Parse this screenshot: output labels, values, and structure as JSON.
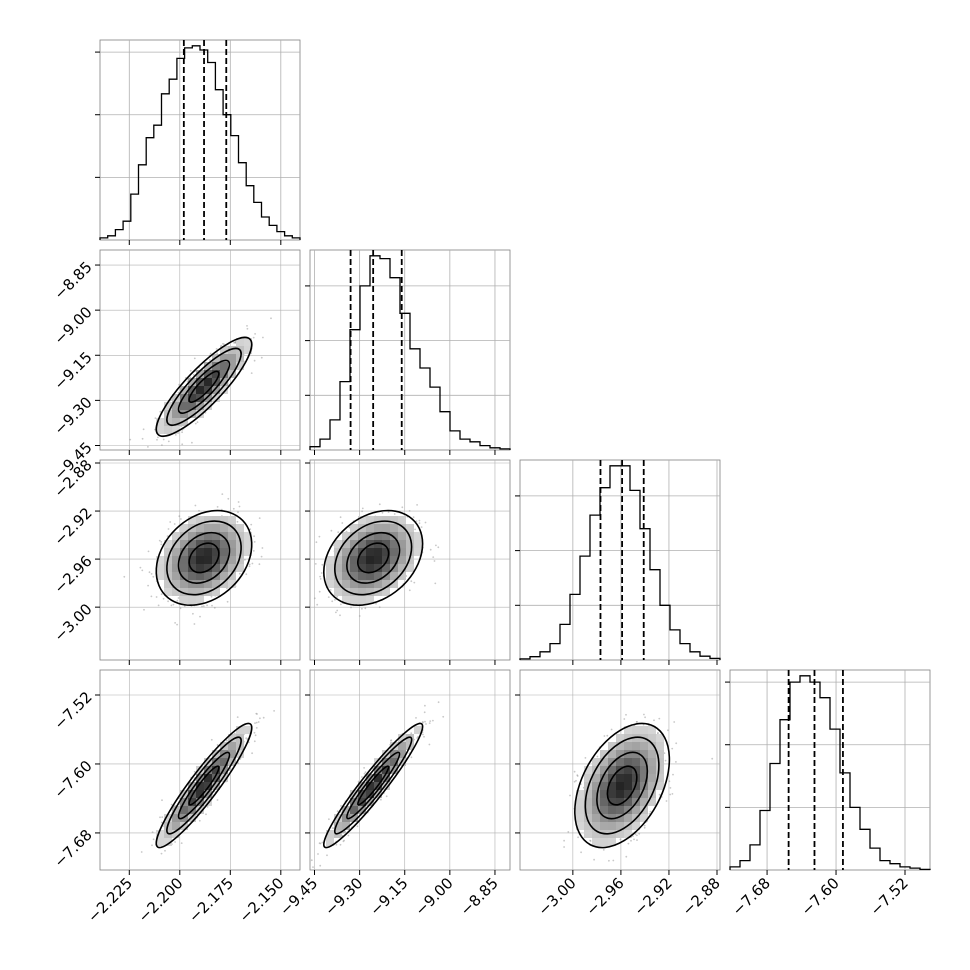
{
  "chart_data": {
    "type": "corner",
    "n_params": 4,
    "colors": {
      "hist": "#000000",
      "grid": "#b0b0b0",
      "frame": "#808080",
      "points": "#9a9a9a"
    },
    "params": [
      {
        "center": -2.188,
        "std": 0.0105,
        "q16": -2.198,
        "q50": -2.188,
        "q84": -2.177,
        "range": [
          -2.2395,
          -2.1405
        ],
        "ticks": [
          -2.225,
          -2.2,
          -2.175,
          -2.15
        ],
        "tick_labels": [
          "−2.225",
          "−2.200",
          "−2.175",
          "−2.150"
        ],
        "hist": [
          0.5,
          1.0,
          2.5,
          4.5,
          11.0,
          18.0,
          24.5,
          27.5,
          35.0,
          38.5,
          43.5,
          46.0,
          46.5,
          45.5,
          42.5,
          36.0,
          30.0,
          25.0,
          18.5,
          13.0,
          9.0,
          5.5,
          3.5,
          2.0,
          1.0,
          0.5
        ]
      },
      {
        "center": -9.255,
        "std": 0.073,
        "q16": -9.33,
        "q50": -9.255,
        "q84": -9.16,
        "range": [
          -9.465,
          -8.8
        ],
        "ticks": [
          -9.45,
          -9.3,
          -9.15,
          -9.0,
          -8.85
        ],
        "tick_labels": [
          "−9.45",
          "−9.30",
          "−9.15",
          "−9.00",
          "−8.85"
        ],
        "hist": [
          0.6,
          2.0,
          5.5,
          12.5,
          22.0,
          30.0,
          35.5,
          35.0,
          31.5,
          25.0,
          18.5,
          15.0,
          11.5,
          7.0,
          3.5,
          2.0,
          1.5,
          0.8,
          0.4,
          0.2
        ]
      },
      {
        "center": -2.959,
        "std": 0.0175,
        "q16": -2.977,
        "q50": -2.959,
        "q84": -2.941,
        "range": [
          -3.044,
          -2.8775
        ],
        "ticks": [
          -3.0,
          -2.96,
          -2.92,
          -2.88
        ],
        "tick_labels": [
          "−3.00",
          "−2.96",
          "−2.92",
          "−2.88"
        ],
        "hist": [
          0.2,
          0.6,
          1.5,
          3.0,
          6.5,
          12.0,
          19.0,
          26.5,
          31.5,
          35.5,
          35.5,
          31.0,
          24.0,
          16.5,
          10.0,
          5.5,
          3.0,
          1.5,
          0.7,
          0.3
        ]
      },
      {
        "center": -7.625,
        "std": 0.032,
        "q16": -7.655,
        "q50": -7.625,
        "q84": -7.592,
        "range": [
          -7.723,
          -7.491
        ],
        "ticks": [
          -7.68,
          -7.6,
          -7.52
        ],
        "tick_labels": [
          "−7.68",
          "−7.60",
          "−7.52"
        ],
        "hist": [
          0.5,
          1.5,
          4.0,
          9.5,
          17.0,
          24.0,
          30.0,
          31.0,
          30.0,
          27.5,
          22.5,
          15.5,
          10.0,
          6.5,
          3.5,
          1.5,
          1.0,
          0.5,
          0.3,
          0.1
        ]
      }
    ],
    "correlations": [
      {
        "x": 0,
        "y": 1,
        "r": 0.86
      },
      {
        "x": 0,
        "y": 2,
        "r": 0.28
      },
      {
        "x": 1,
        "y": 2,
        "r": 0.3
      },
      {
        "x": 0,
        "y": 3,
        "r": 0.93
      },
      {
        "x": 1,
        "y": 3,
        "r": 0.95
      },
      {
        "x": 2,
        "y": 3,
        "r": 0.42
      }
    ]
  }
}
